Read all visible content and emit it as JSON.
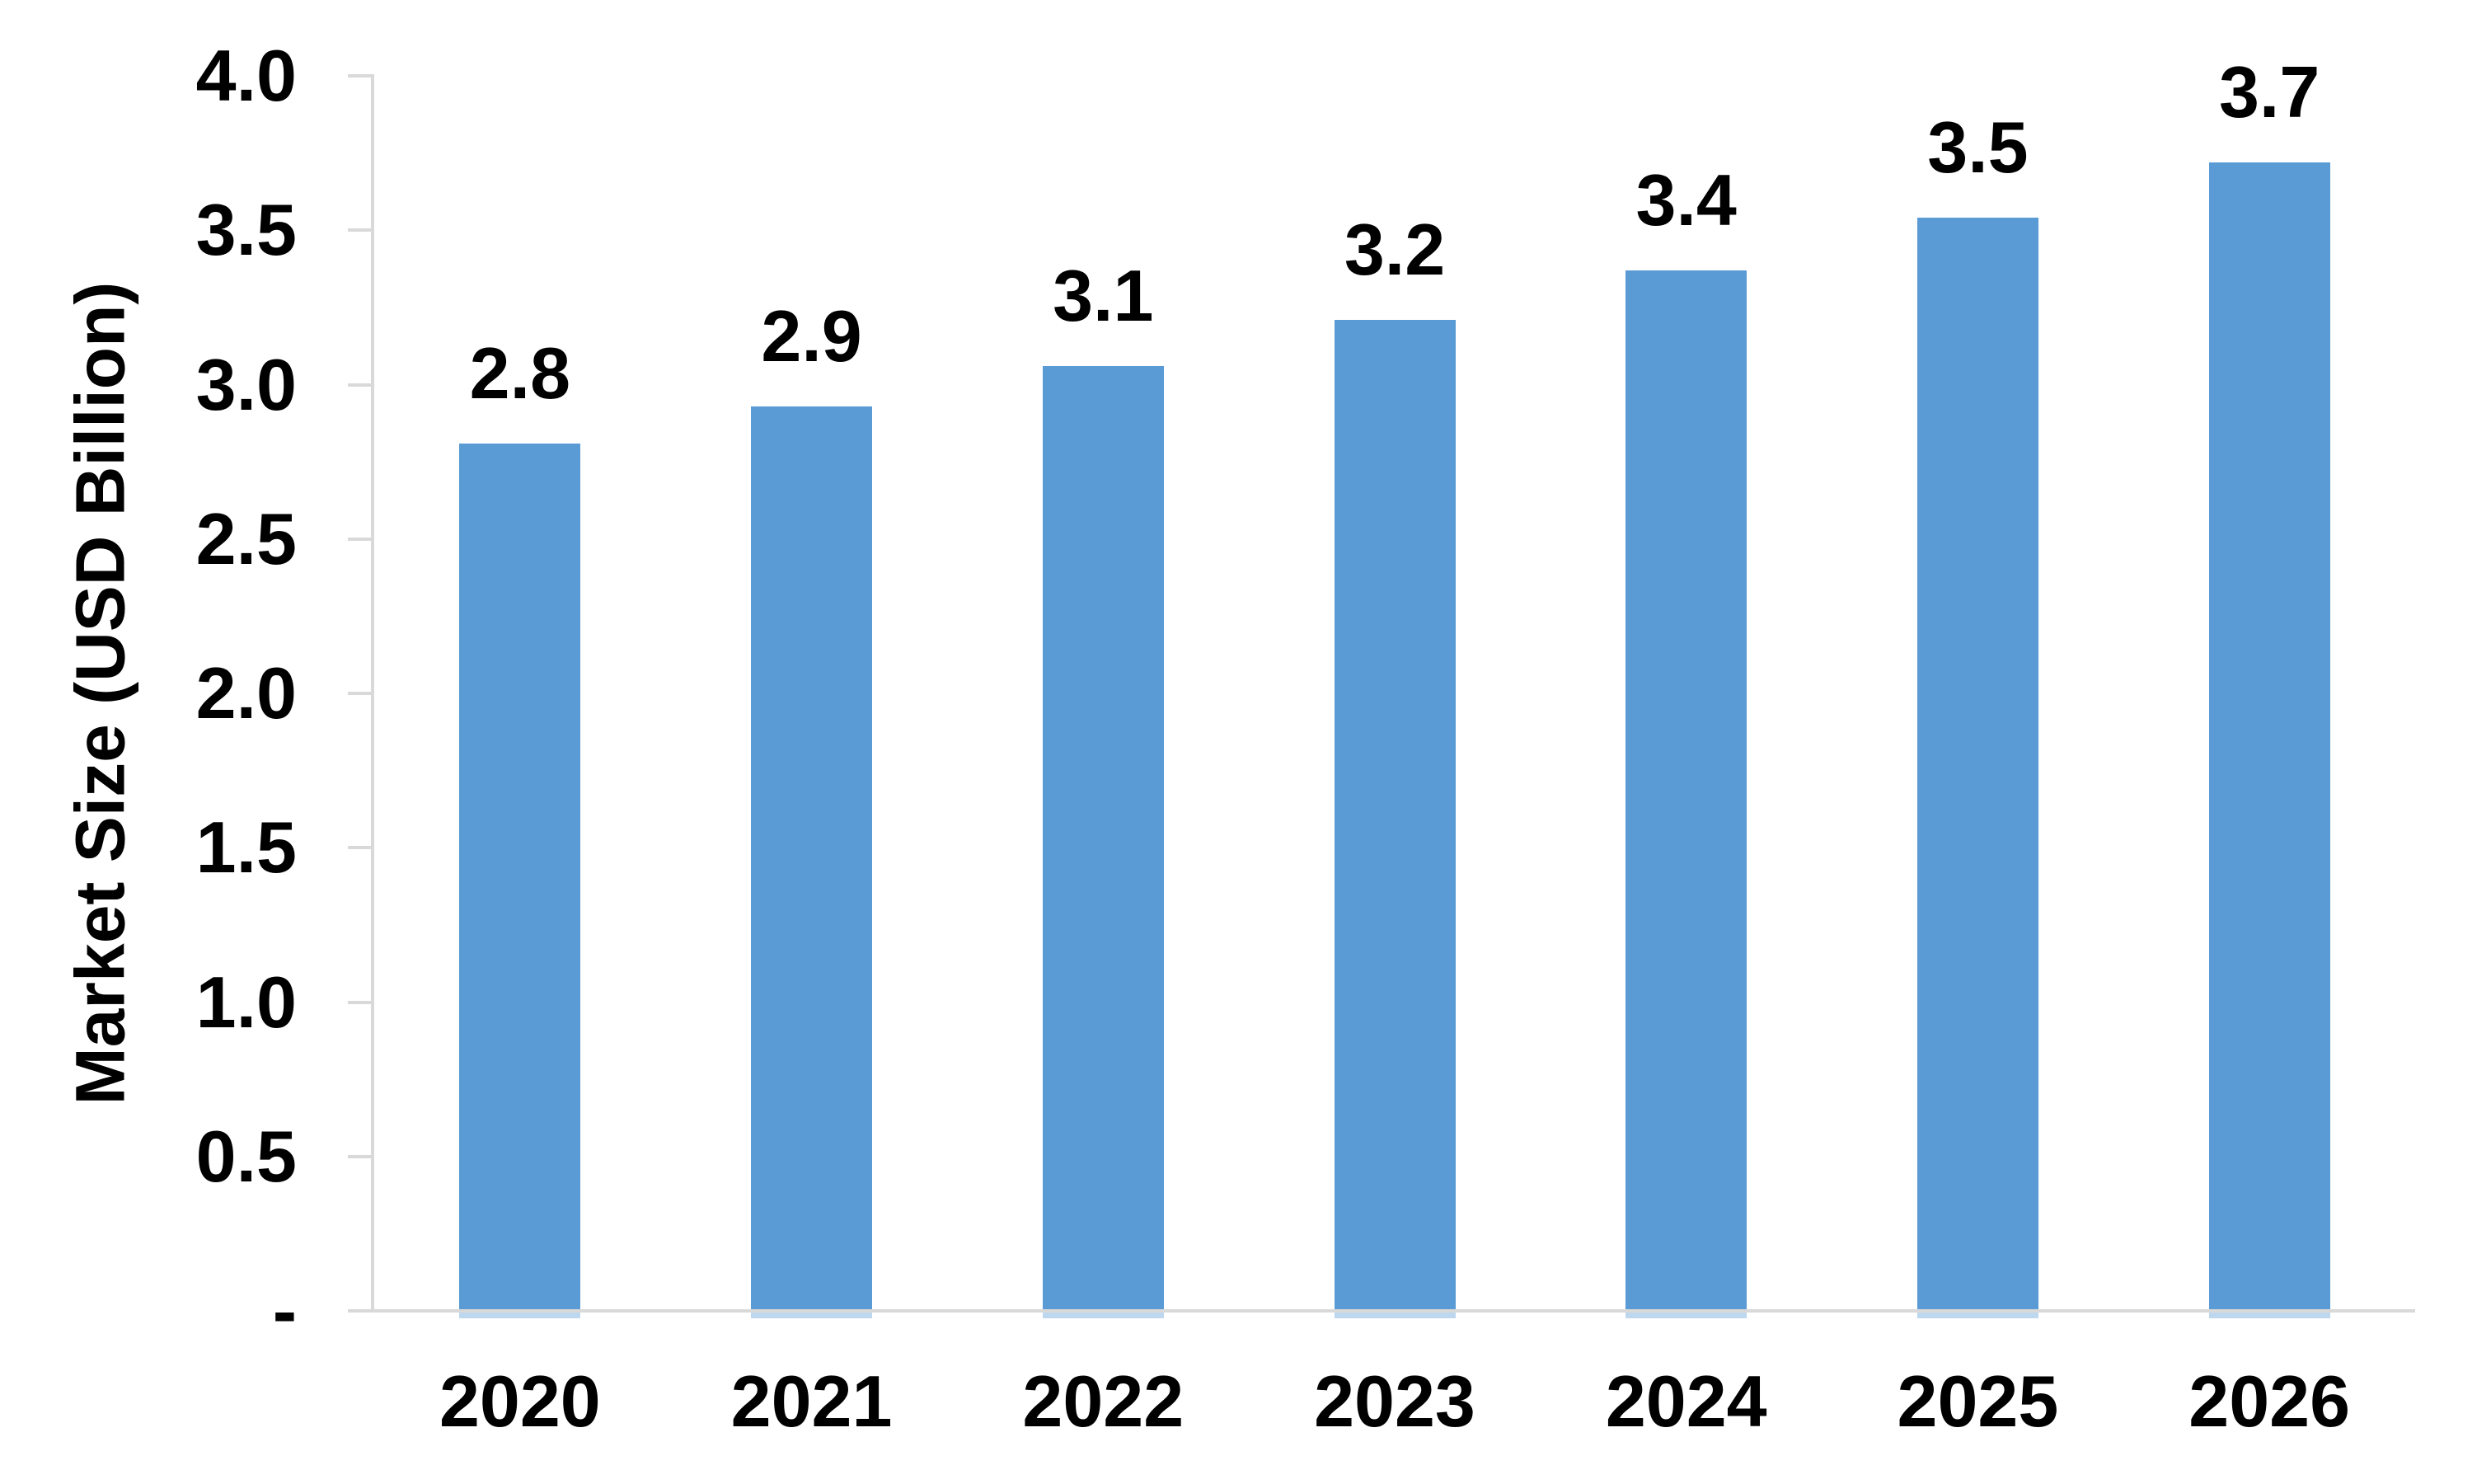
{
  "chart_data": {
    "type": "bar",
    "title": "",
    "xlabel": "",
    "ylabel": "Market Size (USD Billion)",
    "categories": [
      "2020",
      "2021",
      "2022",
      "2023",
      "2024",
      "2025",
      "2026"
    ],
    "series": [
      {
        "name": "Market Size (USD Billion)",
        "values": [
          2.81,
          2.93,
          3.06,
          3.21,
          3.37,
          3.54,
          3.72
        ],
        "data_labels": [
          "2.8",
          "2.9",
          "3.1",
          "3.2",
          "3.4",
          "3.5",
          "3.7"
        ]
      }
    ],
    "y_ticks": [
      {
        "value": 0,
        "label": "-"
      },
      {
        "value": 0.5,
        "label": "0.5"
      },
      {
        "value": 1,
        "label": "1.0"
      },
      {
        "value": 1.5,
        "label": "1.5"
      },
      {
        "value": 2,
        "label": "2.0"
      },
      {
        "value": 2.5,
        "label": "2.5"
      },
      {
        "value": 3,
        "label": "3.0"
      },
      {
        "value": 3.5,
        "label": "3.5"
      },
      {
        "value": 4,
        "label": "4.0"
      }
    ],
    "ylim": [
      0,
      4.0
    ],
    "grid": false,
    "legend_position": "none",
    "colors": {
      "bar_fill": "#5b9bd5",
      "bar_underline": "#bdd7ee",
      "axis_line": "#d9d9d9",
      "text": "#000000",
      "background": "#ffffff"
    }
  }
}
